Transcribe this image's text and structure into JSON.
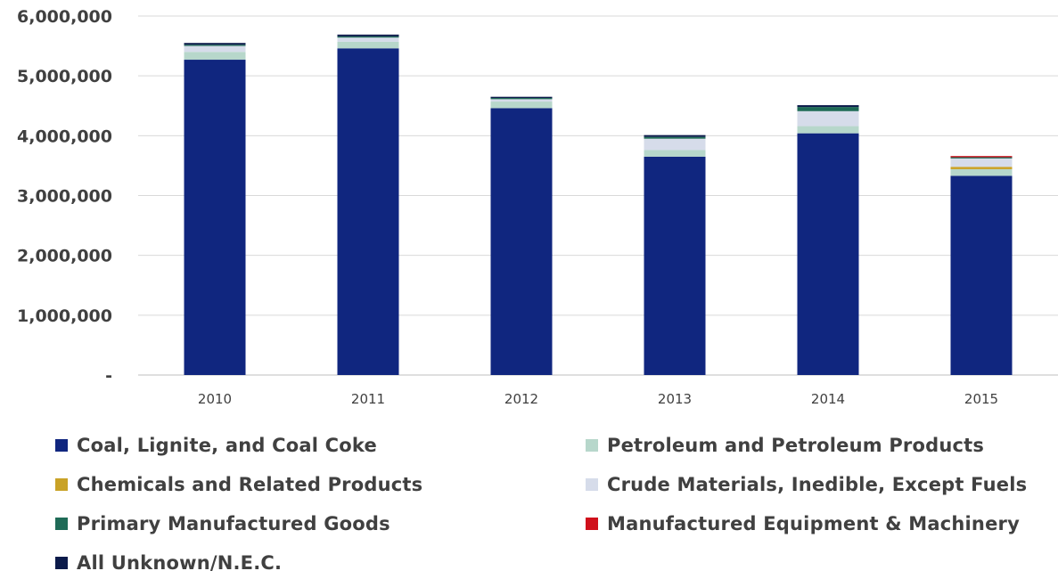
{
  "chart_data": {
    "type": "bar",
    "stacked": true,
    "title": "",
    "xlabel": "",
    "ylabel": "",
    "ylim": [
      0,
      6000000
    ],
    "yticks": [
      0,
      1000000,
      2000000,
      3000000,
      4000000,
      5000000,
      6000000
    ],
    "ytick_labels": [
      "-",
      "1,000,000",
      "2,000,000",
      "3,000,000",
      "4,000,000",
      "5,000,000",
      "6,000,000"
    ],
    "categories": [
      "2010",
      "2011",
      "2012",
      "2013",
      "2014",
      "2015"
    ],
    "grid": "horizontal",
    "legend_position": "bottom",
    "series": [
      {
        "name": "Coal, Lignite, and Coal Coke",
        "color": "#10267f",
        "values": [
          5270000,
          5460000,
          4460000,
          3650000,
          4040000,
          3330000
        ]
      },
      {
        "name": "Petroleum and Petroleum Products",
        "color": "#b7d7cb",
        "values": [
          130000,
          110000,
          110000,
          110000,
          120000,
          110000
        ]
      },
      {
        "name": "Chemicals and Related Products",
        "color": "#c9a227",
        "values": [
          0,
          0,
          0,
          0,
          0,
          40000
        ]
      },
      {
        "name": "Crude Materials, Inedible, Except Fuels",
        "color": "#d6dcea",
        "values": [
          100000,
          70000,
          40000,
          190000,
          250000,
          140000
        ]
      },
      {
        "name": "Primary Manufactured Goods",
        "color": "#1f6b57",
        "values": [
          20000,
          20000,
          20000,
          30000,
          70000,
          20000
        ]
      },
      {
        "name": "Manufactured Equipment & Machinery",
        "color": "#d0101b",
        "values": [
          0,
          0,
          0,
          0,
          0,
          20000
        ]
      },
      {
        "name": "All Unknown/N.E.C.",
        "color": "#0b1a4a",
        "values": [
          30000,
          30000,
          20000,
          30000,
          30000,
          0
        ]
      }
    ]
  }
}
